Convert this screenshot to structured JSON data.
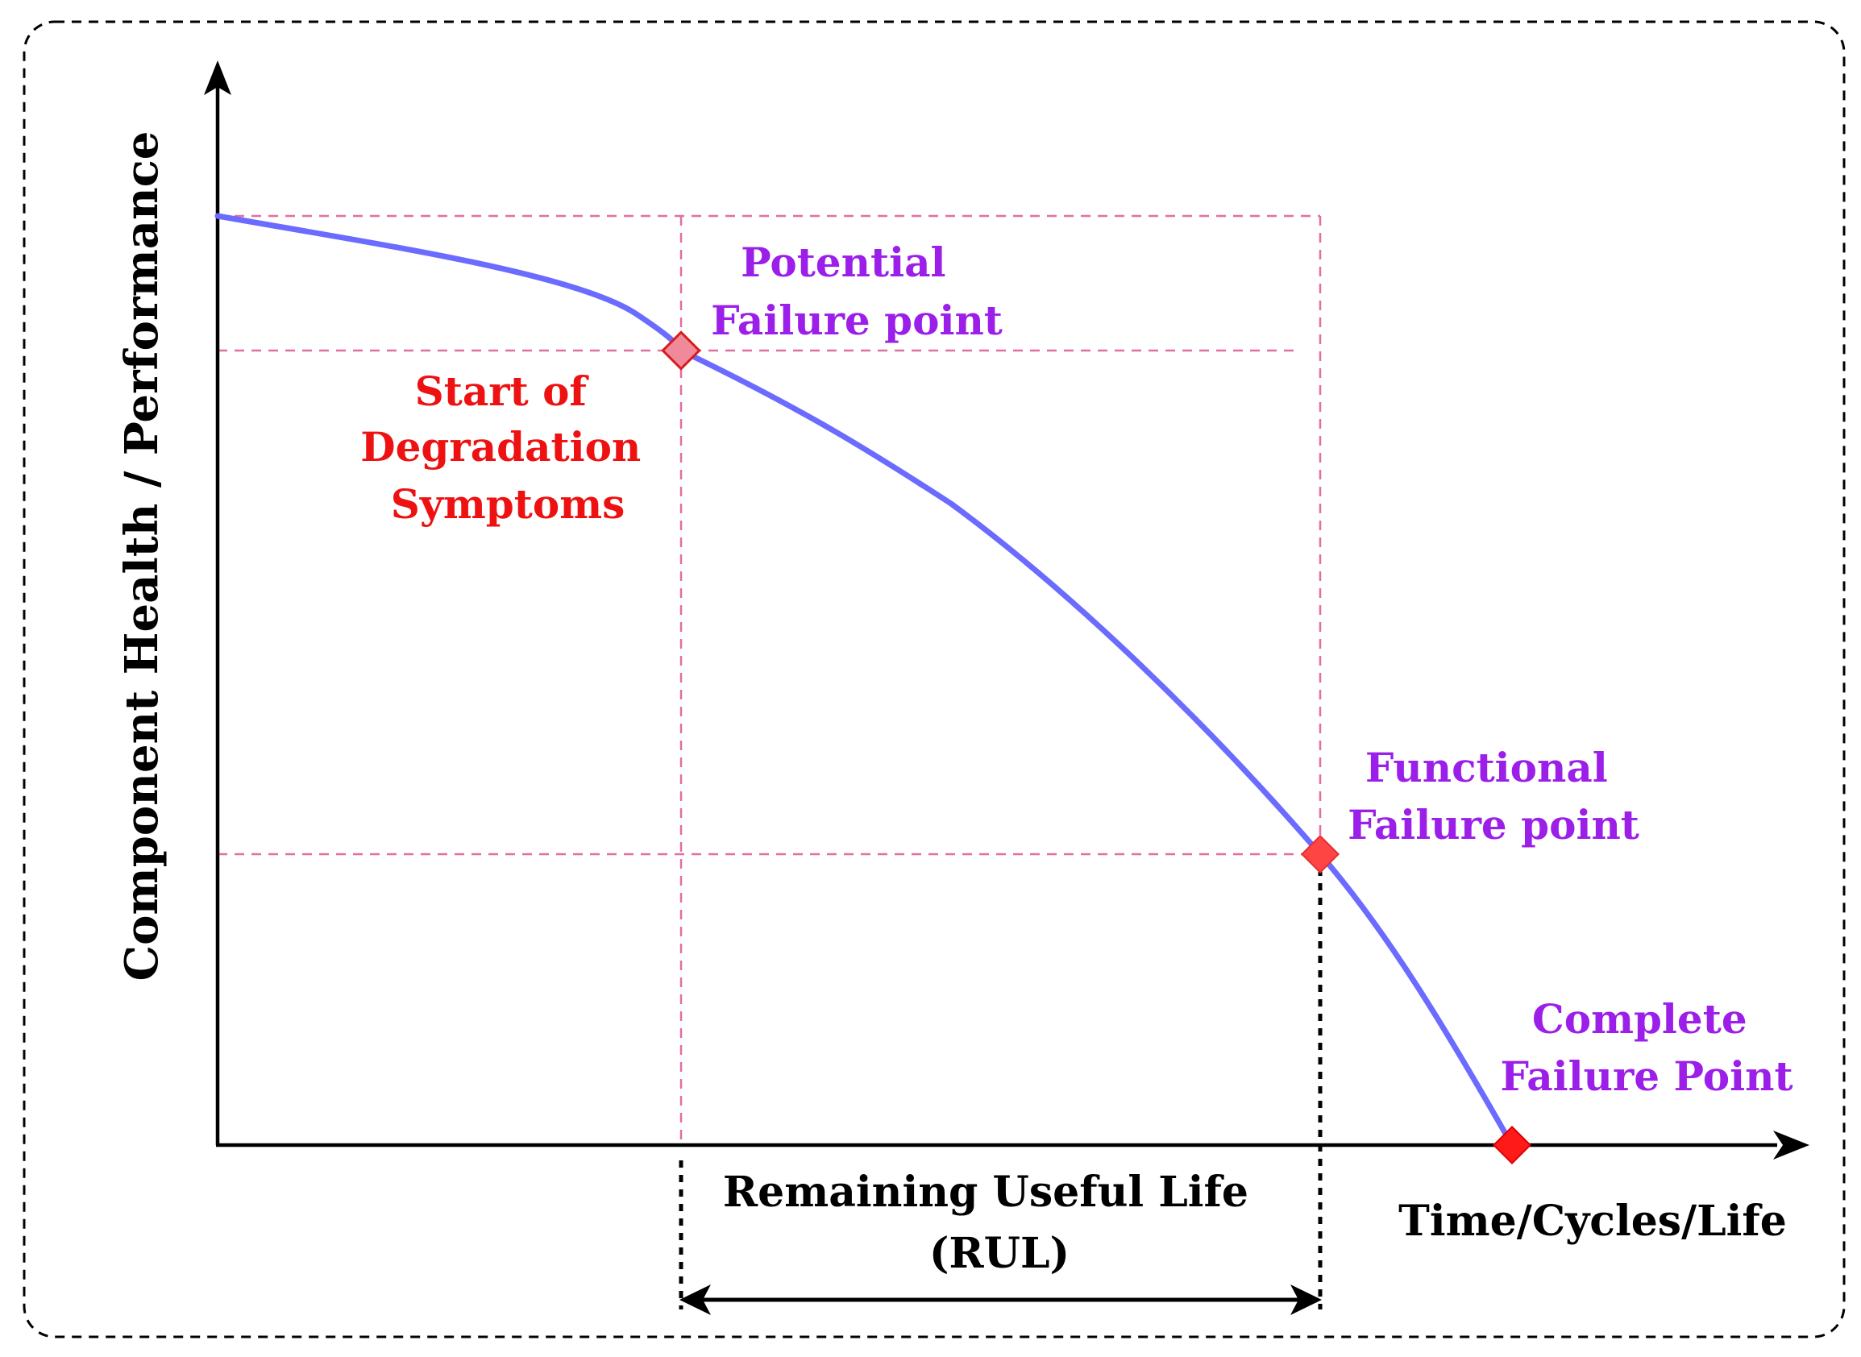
{
  "axes": {
    "y_label": "Component Health / Performance",
    "x_label": "Time/Cycles/Life"
  },
  "annotations": {
    "potential_failure": [
      "Potential",
      "Failure point"
    ],
    "degradation": [
      "Start of",
      "Degradation",
      "Symptoms"
    ],
    "functional_failure": [
      "Functional",
      "Failure point"
    ],
    "complete_failure": [
      "Complete",
      "Failure Point"
    ],
    "rul": [
      "Remaining Useful Life",
      "(RUL)"
    ]
  },
  "colors": {
    "curve": "#6b6bff",
    "guide": "#e06fa3",
    "marker": "#ff4444",
    "red_text": "#ee1111",
    "purple_text": "#9b1fe8",
    "ink": "#000000"
  }
}
